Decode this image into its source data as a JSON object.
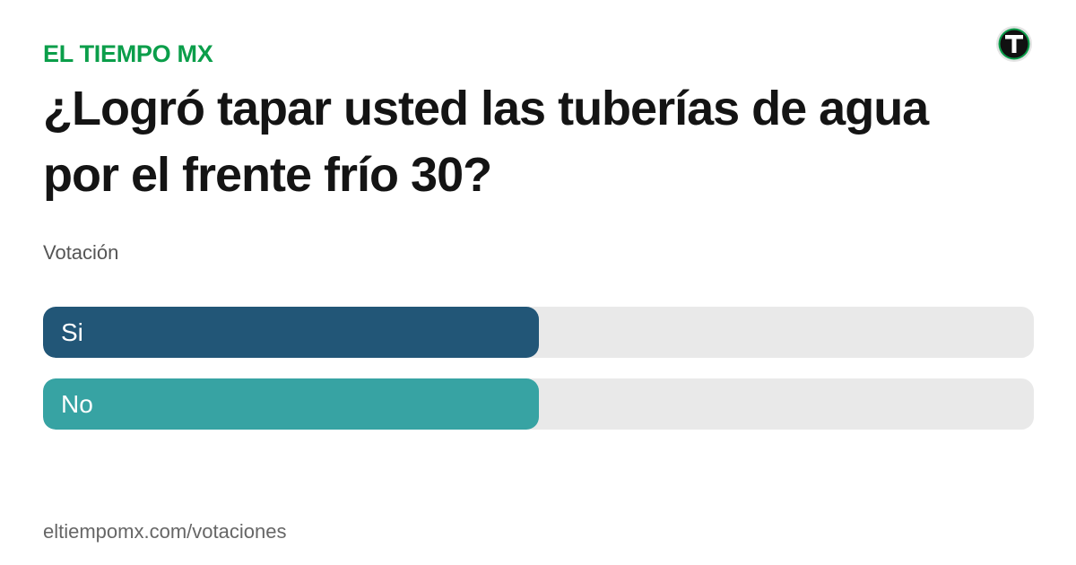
{
  "brand": {
    "name": "EL TIEMPO MX",
    "color": "#0b9e4a",
    "logo_icon": "eltiempo-t-logo-icon"
  },
  "poll": {
    "question": "¿Logró tapar usted las tuberías de agua por el frente frío 30?",
    "subtitle": "Votación",
    "options": [
      {
        "label": "Si",
        "share": 0.5,
        "color": "#225677"
      },
      {
        "label": "No",
        "share": 0.5,
        "color": "#37a3a3"
      }
    ]
  },
  "footer": {
    "url": "eltiempomx.com/votaciones"
  }
}
